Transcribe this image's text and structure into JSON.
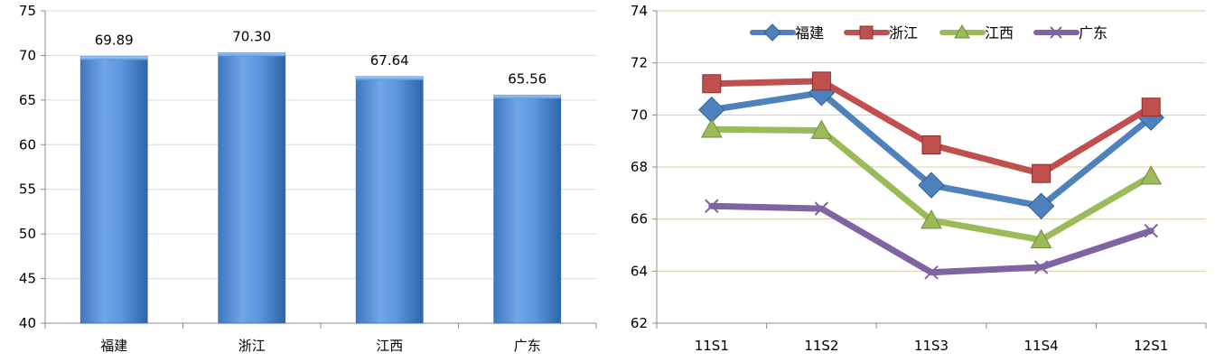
{
  "chart_data": [
    {
      "type": "bar",
      "categories": [
        "福建",
        "浙江",
        "江西",
        "广东"
      ],
      "values": [
        69.89,
        70.3,
        67.64,
        65.56
      ],
      "data_labels": [
        "69.89",
        "70.30",
        "67.64",
        "65.56"
      ],
      "ylim": [
        40,
        75
      ],
      "yticks": [
        40,
        45,
        50,
        55,
        60,
        65,
        70,
        75
      ],
      "grid": true,
      "colors": {
        "bar_light": "#79aeea",
        "bar_mid": "#4f8fd8",
        "bar_dark": "#2e64a8",
        "grid": "#d9d9d9",
        "axis": "#8c8c8c"
      }
    },
    {
      "type": "line",
      "x": [
        "11S1",
        "11S2",
        "11S3",
        "11S4",
        "12S1"
      ],
      "series": [
        {
          "name": "福建",
          "values": [
            70.2,
            70.85,
            67.3,
            66.5,
            69.9
          ],
          "color": "#4f81bd",
          "marker": "diamond"
        },
        {
          "name": "浙江",
          "values": [
            71.2,
            71.3,
            68.85,
            67.75,
            70.3
          ],
          "color": "#c0504d",
          "marker": "square"
        },
        {
          "name": "江西",
          "values": [
            69.45,
            69.4,
            65.95,
            65.2,
            67.65
          ],
          "color": "#9bbb59",
          "marker": "triangle"
        },
        {
          "name": "广东",
          "values": [
            66.5,
            66.4,
            63.95,
            64.15,
            65.55
          ],
          "color": "#8064a2",
          "marker": "x"
        }
      ],
      "ylim": [
        62,
        74
      ],
      "yticks": [
        62,
        64,
        66,
        68,
        70,
        72,
        74
      ],
      "grid": true,
      "legend": "top",
      "colors": {
        "grid": "#d9d0a0",
        "axis": "#8c8c8c"
      }
    }
  ]
}
